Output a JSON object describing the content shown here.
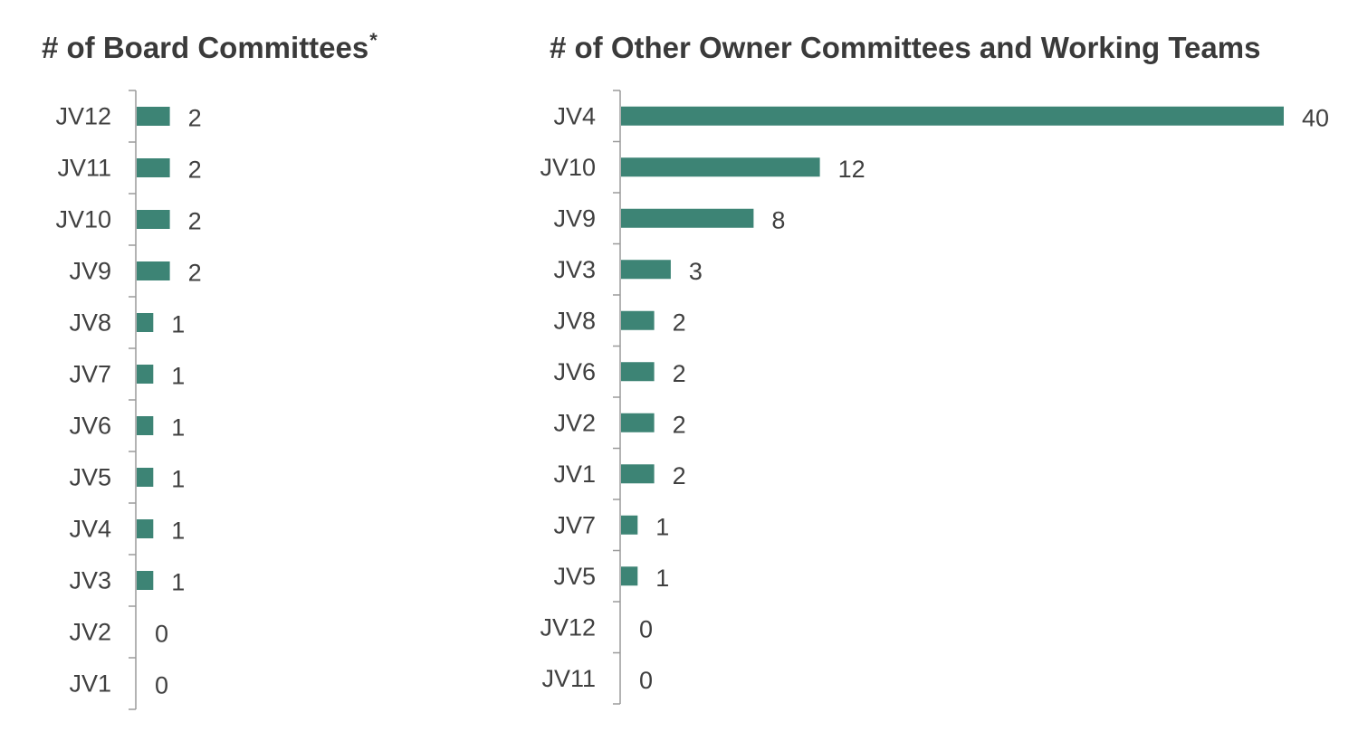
{
  "chart_data": [
    {
      "type": "bar",
      "orientation": "horizontal",
      "title": "# of Board Committees",
      "title_mark": "*",
      "categories": [
        "JV12",
        "JV11",
        "JV10",
        "JV9",
        "JV8",
        "JV7",
        "JV6",
        "JV5",
        "JV4",
        "JV3",
        "JV2",
        "JV1"
      ],
      "values": [
        2,
        2,
        2,
        2,
        1,
        1,
        1,
        1,
        1,
        1,
        0,
        0
      ],
      "xlim": [
        0,
        40
      ],
      "bar_color": "#3d8475",
      "grid": false,
      "data_labels": true
    },
    {
      "type": "bar",
      "orientation": "horizontal",
      "title": "# of Other Owner Committees and Working Teams",
      "categories": [
        "JV4",
        "JV10",
        "JV9",
        "JV3",
        "JV8",
        "JV6",
        "JV2",
        "JV1",
        "JV7",
        "JV5",
        "JV12",
        "JV11"
      ],
      "values": [
        40,
        12,
        8,
        3,
        2,
        2,
        2,
        2,
        1,
        1,
        0,
        0
      ],
      "xlim": [
        0,
        40
      ],
      "bar_color": "#3d8475",
      "grid": false,
      "data_labels": true
    }
  ]
}
